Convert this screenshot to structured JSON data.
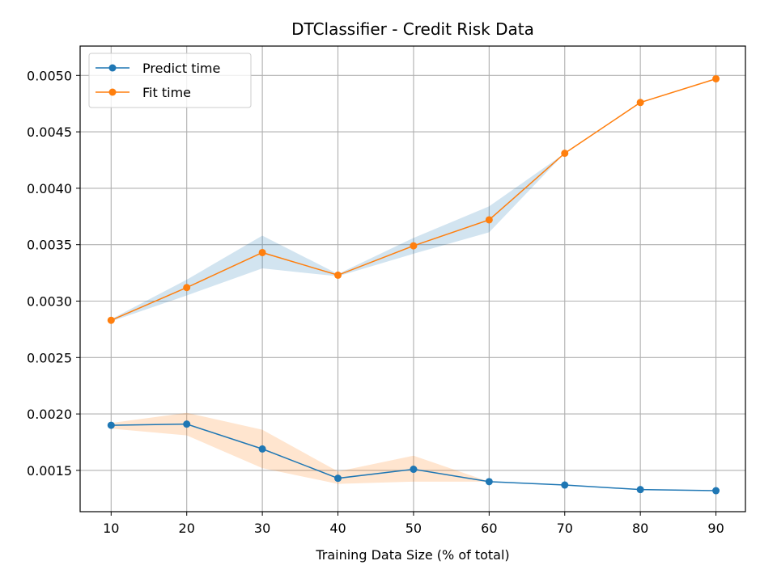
{
  "chart_data": {
    "type": "line",
    "title": "DTClassifier - Credit Risk Data",
    "xlabel": "Training Data Size (% of total)",
    "ylabel": "",
    "x": [
      10,
      20,
      30,
      40,
      50,
      60,
      70,
      80,
      90
    ],
    "xticks": [
      "10",
      "20",
      "30",
      "40",
      "50",
      "60",
      "70",
      "80",
      "90"
    ],
    "yticks": [
      "0.0015",
      "0.0020",
      "0.0025",
      "0.0030",
      "0.0035",
      "0.0040",
      "0.0045",
      "0.0050"
    ],
    "xlim": [
      5.9,
      93.9
    ],
    "ylim": [
      0.001134,
      0.00526
    ],
    "grid": true,
    "legend_position": "upper-left",
    "series": [
      {
        "name": "Predict time",
        "color": "#1f77b4",
        "band_color": "#ff7f0e",
        "values": [
          0.0019,
          0.00191,
          0.00169,
          0.00143,
          0.00151,
          0.0014,
          0.00137,
          0.00133,
          0.00132
        ],
        "band_lower": [
          0.00187,
          0.00181,
          0.00152,
          0.00138,
          0.0014,
          0.0014,
          0.00137,
          0.00133,
          0.00132
        ],
        "band_upper": [
          0.00192,
          0.00201,
          0.00186,
          0.00149,
          0.00163,
          0.0014,
          0.00137,
          0.00133,
          0.00132
        ]
      },
      {
        "name": "Fit time",
        "color": "#ff7f0e",
        "band_color": "#1f77b4",
        "values": [
          0.00283,
          0.00312,
          0.00343,
          0.00323,
          0.00349,
          0.00372,
          0.00431,
          0.00476,
          0.00497
        ],
        "band_lower": [
          0.00282,
          0.00305,
          0.00329,
          0.00322,
          0.00342,
          0.00361,
          0.00431,
          0.00476,
          0.00497
        ],
        "band_upper": [
          0.00284,
          0.00319,
          0.00358,
          0.00324,
          0.00356,
          0.00384,
          0.00431,
          0.00476,
          0.00497
        ]
      }
    ]
  }
}
